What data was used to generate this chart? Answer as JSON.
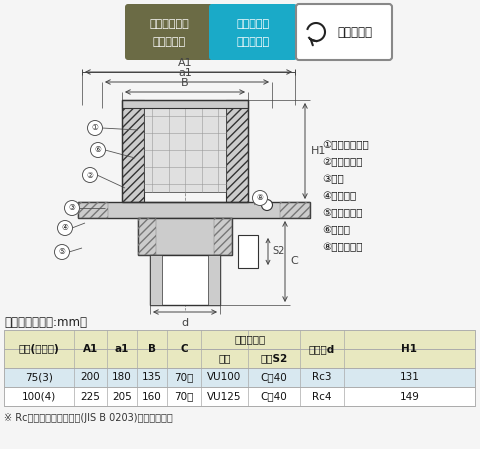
{
  "bg_color": "#f5f5f5",
  "badge1_color": "#6b6b45",
  "badge2_color": "#1aaac8",
  "badge1_line1": "アスファルト",
  "badge1_line2": "防　水　用",
  "badge2_line1": "シ　ー　ト",
  "badge2_line2": "防　水　用",
  "badge3_text": "ねじ込み式",
  "table_header_bg": "#e8e8c0",
  "table_row1_bg": "#d8e8f0",
  "table_row2_bg": "#ffffff",
  "table_border": "#aaaaaa",
  "dim_color": "#444444",
  "line_color": "#333333",
  "hatch_color": "#888888",
  "table_title": "寸法表　＜単位:mm＞",
  "footnote": "※ Rcは管用テーパめねじ(JIS B 0203)を表します。",
  "col_headers_row1": [
    "呼称(インチ)",
    "A1",
    "a1",
    "B",
    "C",
    "スペーサー",
    "",
    "ねじ径d",
    "H1"
  ],
  "col_headers_row2": [
    "",
    "",
    "",
    "",
    "",
    "規格",
    "長さS2",
    "",
    ""
  ],
  "rows": [
    [
      "75(3)",
      "200",
      "180",
      "135",
      "70～",
      "VU100",
      "C－40",
      "Rc3",
      "131"
    ],
    [
      "100(4)",
      "225",
      "205",
      "160",
      "70～",
      "VU125",
      "C－40",
      "Rc4",
      "149"
    ]
  ],
  "part_labels": [
    "①ストレーナー",
    "②防水層押え",
    "③本体",
    "④アンカー",
    "⑤スペーサー",
    "⑥ボルト",
    "⑧つまみネジ"
  ]
}
